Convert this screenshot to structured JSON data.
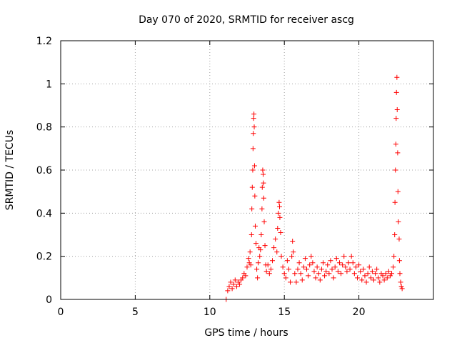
{
  "chart_data": {
    "type": "scatter",
    "title": "Day 070 of 2020, SRMTID for receiver ascg",
    "xlabel": "GPS time / hours",
    "ylabel": "SRMTID / TECUs",
    "xlim": [
      0,
      25
    ],
    "ylim": [
      0,
      1.2
    ],
    "xticks": [
      0,
      5,
      10,
      15,
      20
    ],
    "xtick_labels": [
      "0",
      "5",
      "10",
      "15",
      "20"
    ],
    "yticks": [
      0,
      0.2,
      0.4,
      0.6,
      0.8,
      1.0,
      1.2
    ],
    "ytick_labels": [
      "0",
      "0.2",
      "0.4",
      "0.6",
      "0.8",
      "1",
      "1.2"
    ],
    "grid": true,
    "marker": "+",
    "color": "#ff0000",
    "series": [
      {
        "name": "SRMTID",
        "points": [
          [
            11.1,
            0.0
          ],
          [
            11.2,
            0.04
          ],
          [
            11.3,
            0.06
          ],
          [
            11.4,
            0.08
          ],
          [
            11.5,
            0.05
          ],
          [
            11.6,
            0.07
          ],
          [
            11.7,
            0.09
          ],
          [
            11.8,
            0.06
          ],
          [
            11.9,
            0.08
          ],
          [
            12.0,
            0.07
          ],
          [
            12.1,
            0.09
          ],
          [
            12.2,
            0.1
          ],
          [
            12.3,
            0.12
          ],
          [
            12.4,
            0.11
          ],
          [
            12.5,
            0.15
          ],
          [
            12.6,
            0.19
          ],
          [
            12.65,
            0.17
          ],
          [
            12.7,
            0.22
          ],
          [
            12.75,
            0.16
          ],
          [
            12.8,
            0.3
          ],
          [
            12.82,
            0.42
          ],
          [
            12.85,
            0.52
          ],
          [
            12.88,
            0.6
          ],
          [
            12.9,
            0.7
          ],
          [
            12.92,
            0.77
          ],
          [
            12.94,
            0.84
          ],
          [
            12.96,
            0.86
          ],
          [
            12.98,
            0.8
          ],
          [
            13.0,
            0.62
          ],
          [
            13.02,
            0.48
          ],
          [
            13.05,
            0.34
          ],
          [
            13.1,
            0.26
          ],
          [
            13.15,
            0.14
          ],
          [
            13.2,
            0.1
          ],
          [
            13.25,
            0.17
          ],
          [
            13.3,
            0.24
          ],
          [
            13.35,
            0.2
          ],
          [
            13.4,
            0.23
          ],
          [
            13.45,
            0.3
          ],
          [
            13.5,
            0.42
          ],
          [
            13.52,
            0.52
          ],
          [
            13.55,
            0.6
          ],
          [
            13.58,
            0.58
          ],
          [
            13.6,
            0.54
          ],
          [
            13.62,
            0.47
          ],
          [
            13.65,
            0.36
          ],
          [
            13.7,
            0.25
          ],
          [
            13.75,
            0.16
          ],
          [
            13.8,
            0.13
          ],
          [
            13.9,
            0.16
          ],
          [
            14.0,
            0.12
          ],
          [
            14.1,
            0.14
          ],
          [
            14.2,
            0.18
          ],
          [
            14.3,
            0.24
          ],
          [
            14.4,
            0.28
          ],
          [
            14.5,
            0.22
          ],
          [
            14.55,
            0.33
          ],
          [
            14.6,
            0.4
          ],
          [
            14.65,
            0.45
          ],
          [
            14.68,
            0.43
          ],
          [
            14.7,
            0.38
          ],
          [
            14.75,
            0.31
          ],
          [
            14.8,
            0.2
          ],
          [
            14.9,
            0.15
          ],
          [
            15.0,
            0.12
          ],
          [
            15.1,
            0.1
          ],
          [
            15.2,
            0.18
          ],
          [
            15.3,
            0.14
          ],
          [
            15.4,
            0.08
          ],
          [
            15.5,
            0.2
          ],
          [
            15.55,
            0.27
          ],
          [
            15.6,
            0.22
          ],
          [
            15.7,
            0.12
          ],
          [
            15.8,
            0.08
          ],
          [
            15.9,
            0.14
          ],
          [
            16.0,
            0.17
          ],
          [
            16.1,
            0.12
          ],
          [
            16.2,
            0.09
          ],
          [
            16.3,
            0.15
          ],
          [
            16.4,
            0.19
          ],
          [
            16.5,
            0.14
          ],
          [
            16.6,
            0.11
          ],
          [
            16.7,
            0.16
          ],
          [
            16.8,
            0.2
          ],
          [
            16.9,
            0.17
          ],
          [
            17.0,
            0.13
          ],
          [
            17.1,
            0.1
          ],
          [
            17.2,
            0.15
          ],
          [
            17.3,
            0.12
          ],
          [
            17.4,
            0.09
          ],
          [
            17.5,
            0.14
          ],
          [
            17.6,
            0.17
          ],
          [
            17.7,
            0.11
          ],
          [
            17.8,
            0.13
          ],
          [
            17.9,
            0.16
          ],
          [
            18.0,
            0.12
          ],
          [
            18.1,
            0.18
          ],
          [
            18.2,
            0.14
          ],
          [
            18.3,
            0.1
          ],
          [
            18.4,
            0.15
          ],
          [
            18.5,
            0.19
          ],
          [
            18.6,
            0.13
          ],
          [
            18.7,
            0.17
          ],
          [
            18.8,
            0.12
          ],
          [
            18.9,
            0.16
          ],
          [
            19.0,
            0.2
          ],
          [
            19.1,
            0.15
          ],
          [
            19.2,
            0.13
          ],
          [
            19.3,
            0.17
          ],
          [
            19.4,
            0.14
          ],
          [
            19.5,
            0.2
          ],
          [
            19.6,
            0.17
          ],
          [
            19.7,
            0.12
          ],
          [
            19.8,
            0.15
          ],
          [
            19.9,
            0.1
          ],
          [
            20.0,
            0.16
          ],
          [
            20.1,
            0.13
          ],
          [
            20.2,
            0.09
          ],
          [
            20.3,
            0.14
          ],
          [
            20.4,
            0.11
          ],
          [
            20.5,
            0.08
          ],
          [
            20.6,
            0.12
          ],
          [
            20.7,
            0.15
          ],
          [
            20.8,
            0.1
          ],
          [
            20.9,
            0.13
          ],
          [
            21.0,
            0.09
          ],
          [
            21.1,
            0.12
          ],
          [
            21.2,
            0.14
          ],
          [
            21.3,
            0.1
          ],
          [
            21.4,
            0.08
          ],
          [
            21.5,
            0.12
          ],
          [
            21.6,
            0.11
          ],
          [
            21.7,
            0.09
          ],
          [
            21.8,
            0.12
          ],
          [
            21.9,
            0.1
          ],
          [
            22.0,
            0.13
          ],
          [
            22.1,
            0.11
          ],
          [
            22.2,
            0.12
          ],
          [
            22.3,
            0.15
          ],
          [
            22.35,
            0.2
          ],
          [
            22.4,
            0.3
          ],
          [
            22.42,
            0.45
          ],
          [
            22.45,
            0.6
          ],
          [
            22.48,
            0.72
          ],
          [
            22.5,
            0.84
          ],
          [
            22.52,
            0.96
          ],
          [
            22.55,
            1.03
          ],
          [
            22.57,
            0.88
          ],
          [
            22.6,
            0.68
          ],
          [
            22.62,
            0.5
          ],
          [
            22.65,
            0.36
          ],
          [
            22.7,
            0.28
          ],
          [
            22.72,
            0.18
          ],
          [
            22.75,
            0.12
          ],
          [
            22.8,
            0.08
          ],
          [
            22.85,
            0.06
          ],
          [
            22.9,
            0.05
          ]
        ]
      }
    ]
  }
}
